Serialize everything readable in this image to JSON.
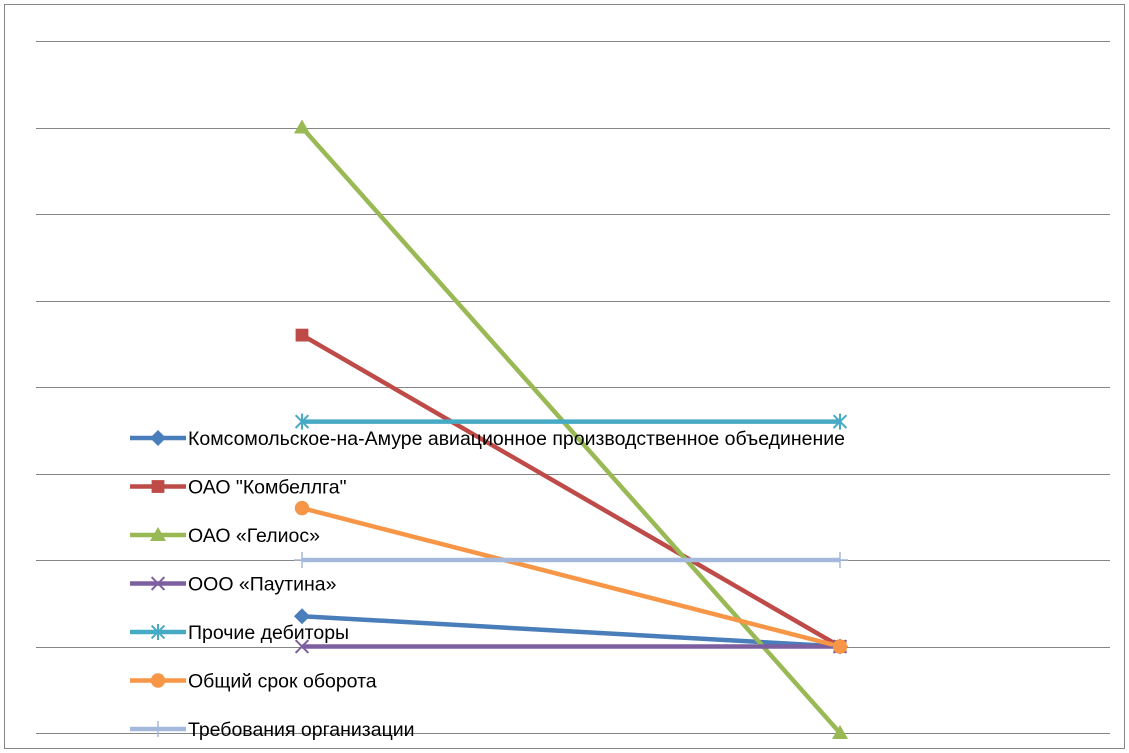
{
  "chart_data": {
    "type": "line",
    "title": "",
    "xlabel": "",
    "ylabel": "",
    "x": [
      "",
      ""
    ],
    "ylim": [
      0,
      8
    ],
    "grid": true,
    "legend": "bottom-left",
    "series": [
      {
        "name": "Комсомольское-на-Амуре авиационное производственное объединение",
        "values": [
          1.35,
          1.0
        ],
        "color": "#4a7ebb",
        "marker": "diamond"
      },
      {
        "name": "ОАО \"Комбеллга\"",
        "values": [
          4.6,
          1.0
        ],
        "color": "#be4b48",
        "marker": "square"
      },
      {
        "name": "ОАО «Гелиос»",
        "values": [
          7.0,
          0.0
        ],
        "color": "#98b954",
        "marker": "triangle"
      },
      {
        "name": "ООО «Паутина»",
        "values": [
          1.0,
          1.0
        ],
        "color": "#7d5fa0",
        "marker": "x"
      },
      {
        "name": "Прочие дебиторы",
        "values": [
          3.6,
          3.6
        ],
        "color": "#46aac5",
        "marker": "asterisk"
      },
      {
        "name": "Общий срок оборота",
        "values": [
          2.6,
          1.0
        ],
        "color": "#f79646",
        "marker": "circle"
      },
      {
        "name": "Требования организации",
        "values": [
          2.0,
          2.0
        ],
        "color": "#a5b9dc",
        "marker": "plus"
      }
    ]
  }
}
